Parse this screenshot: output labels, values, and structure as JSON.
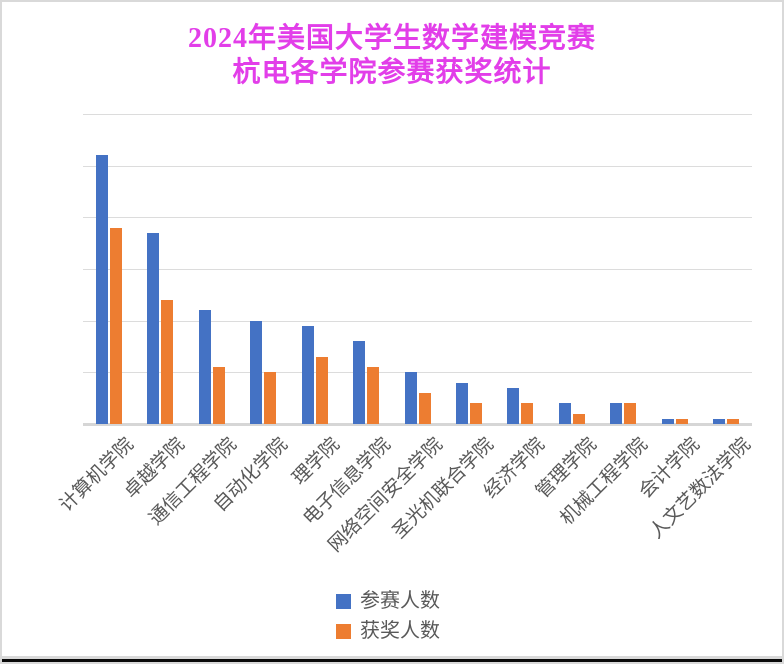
{
  "window": {
    "background": "#FFFFFF",
    "border_color": "#D9D9D9",
    "bottom_edge_color": "#0A0A0A"
  },
  "title": {
    "line1": "2024年美国大学生数学建模竞赛",
    "line2": "杭电各学院参赛获奖统计",
    "color": "#E23EE9"
  },
  "chart_data": {
    "type": "bar",
    "title": "2024年美国大学生数学建模竞赛 杭电各学院参赛获奖统计",
    "categories": [
      "计算机学院",
      "卓越学院",
      "通信工程学院",
      "自动化学院",
      "理学院",
      "电子信息学院",
      "网络空间安全学院",
      "圣光机联合学院",
      "经济学院",
      "管理学院",
      "机械工程学院",
      "会计学院",
      "人文艺数法学院"
    ],
    "series": [
      {
        "name": "参赛人数",
        "color": "#4472C4",
        "values": [
          104,
          74,
          44,
          40,
          38,
          32,
          20,
          16,
          14,
          8,
          8,
          2,
          2
        ]
      },
      {
        "name": "获奖人数",
        "color": "#ED7D31",
        "values": [
          76,
          48,
          22,
          20,
          26,
          22,
          12,
          8,
          8,
          4,
          8,
          2,
          2
        ]
      }
    ],
    "xlabel": "",
    "ylabel": "",
    "ylim": [
      0,
      120
    ],
    "y_gridline_step": 20,
    "y_tick_labels_shown": false,
    "grid": "horizontal",
    "gridline_color": "#DCDCDC",
    "axis_line_color": "#D6D6D6",
    "x_label_color": "#595959",
    "x_label_rotation_deg": -45,
    "legend_position": "bottom-center",
    "legend_text_color": "#595959"
  }
}
